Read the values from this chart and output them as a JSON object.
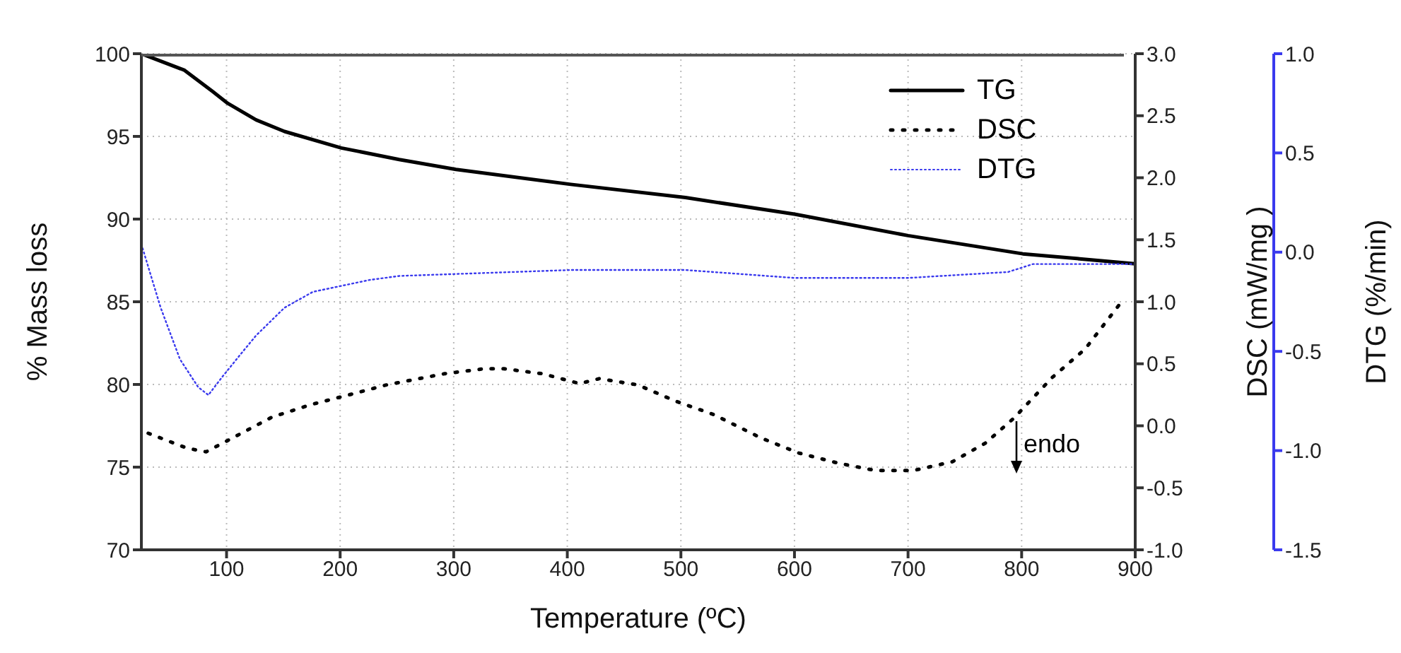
{
  "chart_data": {
    "type": "line",
    "xlabel": "Temperature (ºC)",
    "ylabel": "% Mass loss",
    "y2label": "DSC (mW/mg )",
    "y3label": "DTG (%/min)",
    "xlim": [
      25,
      900
    ],
    "xticks": [
      100,
      200,
      300,
      400,
      500,
      600,
      700,
      800,
      900
    ],
    "ylim": [
      70,
      100
    ],
    "yticks": [
      70,
      75,
      80,
      85,
      90,
      95,
      100
    ],
    "y2lim": [
      -1,
      3
    ],
    "y2ticks": [
      {
        "value": -1,
        "label": "-1.0"
      },
      {
        "value": -0.5,
        "label": "-0.5"
      },
      {
        "value": 0,
        "label": "0.0"
      },
      {
        "value": 0.5,
        "label": "0.5"
      },
      {
        "value": 1,
        "label": "1.0"
      },
      {
        "value": 1.5,
        "label": "1.5"
      },
      {
        "value": 2,
        "label": "2.0"
      },
      {
        "value": 2.5,
        "label": "2.5"
      },
      {
        "value": 3,
        "label": "3.0"
      }
    ],
    "y3lim": [
      -1.5,
      1
    ],
    "y3ticks": [
      {
        "value": -1.5,
        "label": "-1.5"
      },
      {
        "value": -1,
        "label": "-1.0"
      },
      {
        "value": -0.5,
        "label": "-0.5"
      },
      {
        "value": 0,
        "label": "0.0"
      },
      {
        "value": 0.5,
        "label": "0.5"
      },
      {
        "value": 1,
        "label": "1.0"
      }
    ],
    "grid": true,
    "legend": "top right",
    "marker": "none",
    "annotations": [
      "endo"
    ],
    "series": [
      {
        "name": "TG",
        "color": "#000000",
        "line_style": "solid",
        "x": [
          25,
          63,
          88,
          101,
          126,
          151,
          201,
          252,
          302,
          403,
          504,
          600,
          700,
          801,
          851,
          900
        ],
        "values": [
          100,
          99,
          97.7,
          97,
          96,
          95.3,
          94.3,
          93.6,
          93,
          92.1,
          91.3,
          90.3,
          89,
          87.9,
          87.6,
          87.3
        ]
      },
      {
        "name": "DSC",
        "color": "#000000",
        "line_style": "dotted",
        "axis": "y2",
        "x": [
          31,
          65,
          82,
          109,
          140,
          174,
          208,
          241,
          292,
          327,
          344,
          378,
          411,
          428,
          462,
          495,
          529,
          571,
          604,
          638,
          671,
          705,
          739,
          768,
          793,
          827,
          856,
          877,
          888
        ],
        "values": [
          -0.06,
          -0.18,
          -0.21,
          -0.08,
          0.07,
          0.17,
          0.25,
          0.33,
          0.42,
          0.46,
          0.46,
          0.42,
          0.34,
          0.38,
          0.33,
          0.2,
          0.09,
          -0.1,
          -0.22,
          -0.3,
          -0.36,
          -0.36,
          -0.29,
          -0.14,
          0.06,
          0.39,
          0.62,
          0.87,
          1
        ]
      },
      {
        "name": "DTG",
        "color": "#3a3aee",
        "line_style": "dotted",
        "axis": "y3",
        "x": [
          25,
          42,
          59,
          75,
          84,
          96,
          113,
          126,
          151,
          176,
          201,
          226,
          252,
          302,
          403,
          504,
          600,
          700,
          788,
          810,
          900
        ],
        "values": [
          0.04,
          -0.28,
          -0.54,
          -0.68,
          -0.72,
          -0.63,
          -0.51,
          -0.42,
          -0.28,
          -0.2,
          -0.17,
          -0.14,
          -0.12,
          -0.11,
          -0.09,
          -0.09,
          -0.13,
          -0.13,
          -0.1,
          -0.06,
          -0.06
        ]
      }
    ]
  }
}
